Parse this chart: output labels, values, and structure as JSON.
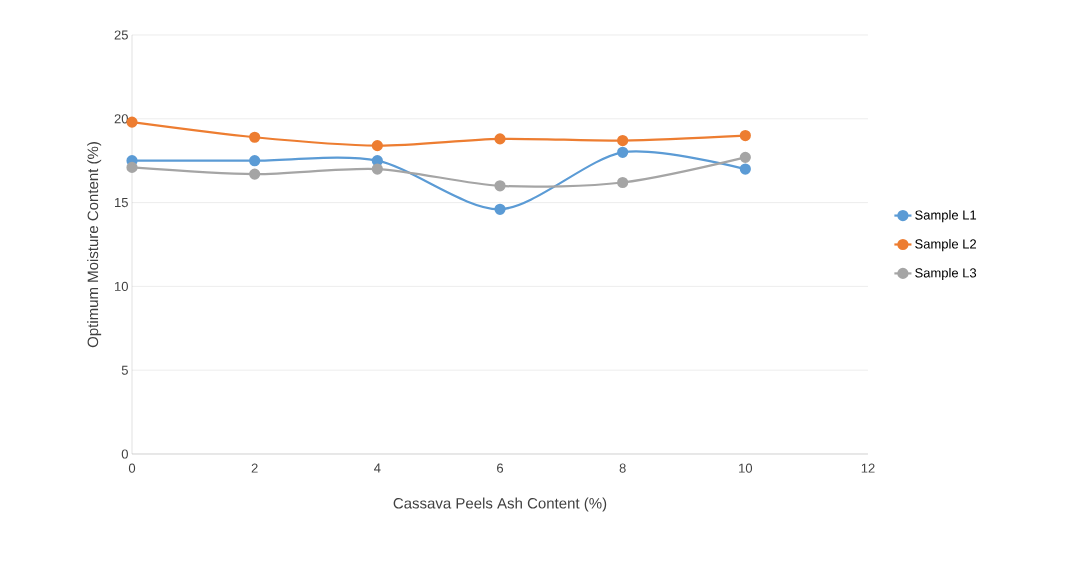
{
  "chart_data": {
    "type": "line",
    "xlabel": "Cassava Peels Ash Content (%)",
    "ylabel": "Optimum Moisture Content (%)",
    "x": [
      0,
      2,
      4,
      6,
      8,
      10
    ],
    "series": [
      {
        "name": "Sample L1",
        "color": "#5b9bd5",
        "values": [
          17.5,
          17.5,
          17.5,
          14.6,
          18.0,
          17.0
        ]
      },
      {
        "name": "Sample L2",
        "color": "#ed7d31",
        "values": [
          19.8,
          18.9,
          18.4,
          18.8,
          18.7,
          19.0
        ]
      },
      {
        "name": "Sample L3",
        "color": "#a5a5a5",
        "values": [
          17.1,
          16.7,
          17.0,
          16.0,
          16.2,
          17.7
        ]
      }
    ],
    "xlim": [
      0,
      12
    ],
    "xticks": [
      0,
      2,
      4,
      6,
      8,
      10,
      12
    ],
    "ylim": [
      0,
      25
    ],
    "yticks": [
      0,
      5,
      10,
      15,
      20,
      25
    ],
    "grid": "y",
    "legend": "right",
    "marker": "circle",
    "line_style": "solid"
  }
}
